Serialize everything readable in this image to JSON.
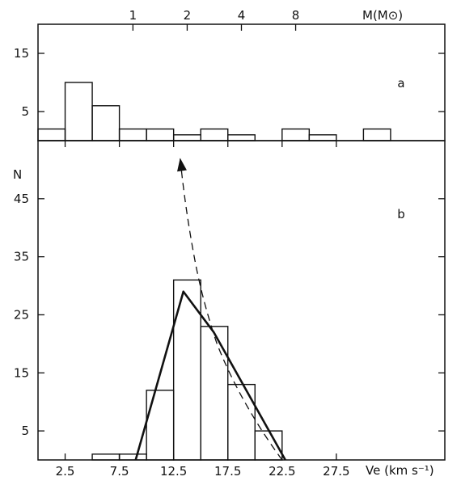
{
  "chart_data": [
    {
      "panel_label": "a",
      "type": "bar",
      "bin_width": 2.5,
      "x": [
        0,
        2.5,
        5,
        7.5,
        10,
        12.5,
        15,
        17.5,
        20,
        22.5,
        25,
        27.5,
        30,
        32.5,
        35
      ],
      "values": [
        2,
        10,
        6,
        2,
        2,
        1,
        2,
        1,
        0,
        2,
        1,
        0,
        2,
        0,
        0
      ],
      "yticks": [
        5,
        15
      ],
      "ylim": [
        0,
        20
      ],
      "top_axis_label": "M(M⊙)",
      "top_ticks": [
        {
          "label": "1",
          "ve": 8.75
        },
        {
          "label": "2",
          "ve": 13.75
        },
        {
          "label": "4",
          "ve": 18.75
        },
        {
          "label": "8",
          "ve": 23.75
        }
      ]
    },
    {
      "panel_label": "b",
      "type": "bar",
      "bin_width": 2.5,
      "x": [
        0,
        2.5,
        5,
        7.5,
        10,
        12.5,
        15,
        17.5,
        20,
        22.5,
        25,
        27.5,
        30,
        32.5,
        35
      ],
      "values": [
        0,
        0,
        1,
        1,
        12,
        31,
        23,
        13,
        5,
        0,
        0,
        0,
        0,
        0,
        0
      ],
      "yticks": [
        5,
        15,
        25,
        35,
        45
      ],
      "ylim": [
        0,
        55
      ],
      "ylabel": "N",
      "xlabel": "Ve (km s⁻¹)",
      "xticks": [
        "2.5",
        "7.5",
        "12.5",
        "17.5",
        "22.5",
        "27.5"
      ],
      "xlim": [
        0,
        37.5
      ],
      "solid_curve": [
        {
          "x": 9,
          "y": 0
        },
        {
          "x": 13.4,
          "y": 29
        },
        {
          "x": 16.2,
          "y": 22
        },
        {
          "x": 22.8,
          "y": 0
        }
      ],
      "dashed_curve": [
        {
          "x": 22.5,
          "y": 0
        },
        {
          "x": 16.5,
          "y": 20
        },
        {
          "x": 14.4,
          "y": 35
        },
        {
          "x": 13.1,
          "y": 52
        }
      ]
    }
  ],
  "text": {
    "label_a": "a",
    "label_b": "b",
    "ylabel": "N",
    "mass_axis_label": "M(M⊙)",
    "ve_label": "Ve (km s⁻¹)"
  }
}
